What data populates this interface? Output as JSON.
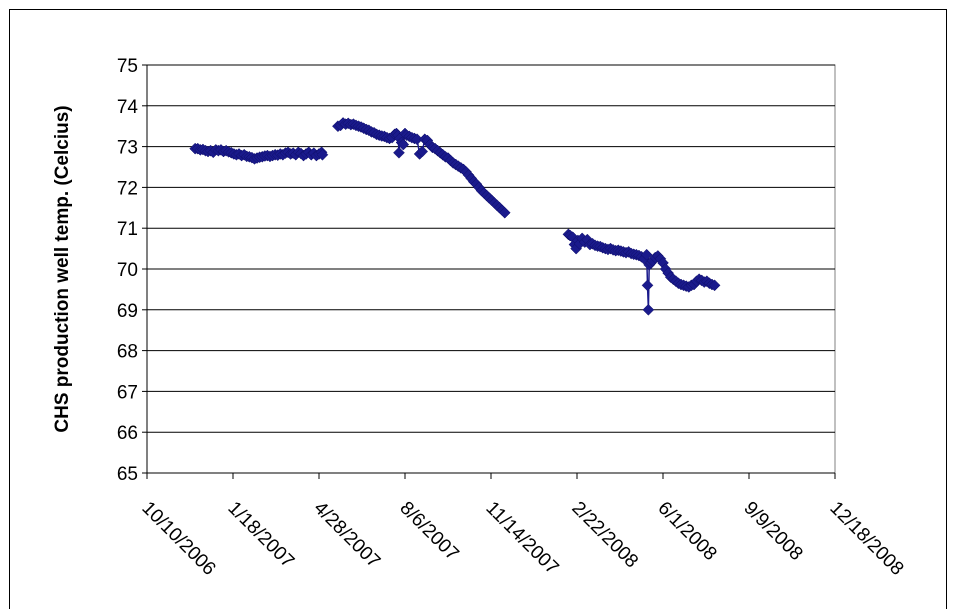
{
  "chart_data": {
    "type": "scatter",
    "title": "",
    "xlabel": "",
    "ylabel": "CHS production well temp. (Celcius)",
    "ylim": [
      65,
      75
    ],
    "y_ticks": [
      "65",
      "66",
      "67",
      "68",
      "69",
      "70",
      "71",
      "72",
      "73",
      "74",
      "75"
    ],
    "xlim": [
      "2006-10-10",
      "2008-12-18"
    ],
    "x_ticks": [
      "10/10/2006",
      "1/18/2007",
      "4/28/2007",
      "8/6/2007",
      "11/14/2007",
      "2/22/2008",
      "6/1/2008",
      "9/9/2008",
      "12/18/2008"
    ],
    "grid": true,
    "legend": "none",
    "marker": "diamond",
    "marker_color": "#1a1a8c",
    "points": [
      [
        "2006-12-05",
        72.95
      ],
      [
        "2006-12-08",
        72.95
      ],
      [
        "2006-12-11",
        72.92
      ],
      [
        "2006-12-14",
        72.93
      ],
      [
        "2006-12-17",
        72.9
      ],
      [
        "2006-12-20",
        72.88
      ],
      [
        "2006-12-23",
        72.9
      ],
      [
        "2006-12-26",
        72.86
      ],
      [
        "2006-12-29",
        72.92
      ],
      [
        "2007-01-01",
        72.9
      ],
      [
        "2007-01-04",
        72.92
      ],
      [
        "2007-01-07",
        72.88
      ],
      [
        "2007-01-10",
        72.9
      ],
      [
        "2007-01-13",
        72.87
      ],
      [
        "2007-01-16",
        72.85
      ],
      [
        "2007-01-19",
        72.82
      ],
      [
        "2007-01-22",
        72.8
      ],
      [
        "2007-01-25",
        72.82
      ],
      [
        "2007-01-28",
        72.78
      ],
      [
        "2007-01-31",
        72.8
      ],
      [
        "2007-02-03",
        72.76
      ],
      [
        "2007-02-06",
        72.75
      ],
      [
        "2007-02-09",
        72.73
      ],
      [
        "2007-02-12",
        72.7
      ],
      [
        "2007-02-15",
        72.72
      ],
      [
        "2007-02-18",
        72.74
      ],
      [
        "2007-02-21",
        72.75
      ],
      [
        "2007-02-24",
        72.77
      ],
      [
        "2007-02-27",
        72.78
      ],
      [
        "2007-03-02",
        72.76
      ],
      [
        "2007-03-05",
        72.78
      ],
      [
        "2007-03-08",
        72.8
      ],
      [
        "2007-03-11",
        72.79
      ],
      [
        "2007-03-14",
        72.82
      ],
      [
        "2007-03-17",
        72.8
      ],
      [
        "2007-03-20",
        72.84
      ],
      [
        "2007-03-23",
        72.86
      ],
      [
        "2007-03-26",
        72.82
      ],
      [
        "2007-03-29",
        72.84
      ],
      [
        "2007-04-01",
        72.8
      ],
      [
        "2007-04-04",
        72.86
      ],
      [
        "2007-04-07",
        72.83
      ],
      [
        "2007-04-10",
        72.78
      ],
      [
        "2007-04-13",
        72.82
      ],
      [
        "2007-04-16",
        72.86
      ],
      [
        "2007-04-19",
        72.8
      ],
      [
        "2007-04-22",
        72.84
      ],
      [
        "2007-04-25",
        72.78
      ],
      [
        "2007-04-28",
        72.82
      ],
      [
        "2007-05-01",
        72.86
      ],
      [
        "2007-05-02",
        72.8
      ],
      [
        "2007-05-20",
        73.5
      ],
      [
        "2007-05-23",
        73.52
      ],
      [
        "2007-05-26",
        73.58
      ],
      [
        "2007-05-29",
        73.55
      ],
      [
        "2007-06-01",
        73.57
      ],
      [
        "2007-06-04",
        73.54
      ],
      [
        "2007-06-07",
        73.55
      ],
      [
        "2007-06-10",
        73.52
      ],
      [
        "2007-06-13",
        73.5
      ],
      [
        "2007-06-16",
        73.48
      ],
      [
        "2007-06-19",
        73.45
      ],
      [
        "2007-06-22",
        73.42
      ],
      [
        "2007-06-25",
        73.4
      ],
      [
        "2007-06-28",
        73.36
      ],
      [
        "2007-07-01",
        73.34
      ],
      [
        "2007-07-04",
        73.3
      ],
      [
        "2007-07-07",
        73.28
      ],
      [
        "2007-07-10",
        73.26
      ],
      [
        "2007-07-13",
        73.25
      ],
      [
        "2007-07-16",
        73.22
      ],
      [
        "2007-07-19",
        73.2
      ],
      [
        "2007-07-22",
        73.22
      ],
      [
        "2007-07-25",
        73.3
      ],
      [
        "2007-07-27",
        73.32
      ],
      [
        "2007-07-29",
        73.28
      ],
      [
        "2007-07-30",
        72.85
      ],
      [
        "2007-07-31",
        73.2
      ],
      [
        "2007-08-02",
        73.1
      ],
      [
        "2007-08-04",
        73.05
      ],
      [
        "2007-08-06",
        73.32
      ],
      [
        "2007-08-08",
        73.28
      ],
      [
        "2007-08-11",
        73.25
      ],
      [
        "2007-08-14",
        73.22
      ],
      [
        "2007-08-17",
        73.2
      ],
      [
        "2007-08-20",
        73.18
      ],
      [
        "2007-08-23",
        72.82
      ],
      [
        "2007-08-26",
        72.88
      ],
      [
        "2007-08-29",
        73.18
      ],
      [
        "2007-09-01",
        73.15
      ],
      [
        "2007-09-04",
        73.05
      ],
      [
        "2007-09-07",
        72.98
      ],
      [
        "2007-09-10",
        72.95
      ],
      [
        "2007-09-13",
        72.9
      ],
      [
        "2007-09-16",
        72.85
      ],
      [
        "2007-09-19",
        72.8
      ],
      [
        "2007-09-22",
        72.75
      ],
      [
        "2007-09-25",
        72.72
      ],
      [
        "2007-09-28",
        72.66
      ],
      [
        "2007-10-01",
        72.6
      ],
      [
        "2007-10-04",
        72.56
      ],
      [
        "2007-10-07",
        72.52
      ],
      [
        "2007-10-10",
        72.48
      ],
      [
        "2007-10-13",
        72.44
      ],
      [
        "2007-10-16",
        72.38
      ],
      [
        "2007-10-19",
        72.3
      ],
      [
        "2007-10-22",
        72.22
      ],
      [
        "2007-10-25",
        72.14
      ],
      [
        "2007-10-28",
        72.08
      ],
      [
        "2007-10-31",
        72.0
      ],
      [
        "2007-11-03",
        71.92
      ],
      [
        "2007-11-06",
        71.86
      ],
      [
        "2007-11-09",
        71.8
      ],
      [
        "2007-11-12",
        71.74
      ],
      [
        "2007-11-15",
        71.68
      ],
      [
        "2007-11-18",
        71.62
      ],
      [
        "2007-11-21",
        71.56
      ],
      [
        "2007-11-24",
        71.5
      ],
      [
        "2007-11-27",
        71.44
      ],
      [
        "2007-11-30",
        71.38
      ],
      [
        "2008-02-12",
        70.85
      ],
      [
        "2008-02-14",
        70.82
      ],
      [
        "2008-02-17",
        70.78
      ],
      [
        "2008-02-19",
        70.6
      ],
      [
        "2008-02-21",
        70.5
      ],
      [
        "2008-02-23",
        70.7
      ],
      [
        "2008-02-25",
        70.62
      ],
      [
        "2008-02-28",
        70.75
      ],
      [
        "2008-03-02",
        70.66
      ],
      [
        "2008-03-05",
        70.72
      ],
      [
        "2008-03-08",
        70.6
      ],
      [
        "2008-03-11",
        70.62
      ],
      [
        "2008-03-14",
        70.58
      ],
      [
        "2008-03-17",
        70.56
      ],
      [
        "2008-03-20",
        70.55
      ],
      [
        "2008-03-23",
        70.52
      ],
      [
        "2008-03-26",
        70.5
      ],
      [
        "2008-03-29",
        70.48
      ],
      [
        "2008-04-01",
        70.5
      ],
      [
        "2008-04-04",
        70.47
      ],
      [
        "2008-04-07",
        70.45
      ],
      [
        "2008-04-10",
        70.46
      ],
      [
        "2008-04-13",
        70.44
      ],
      [
        "2008-04-16",
        70.42
      ],
      [
        "2008-04-19",
        70.4
      ],
      [
        "2008-04-22",
        70.42
      ],
      [
        "2008-04-25",
        70.38
      ],
      [
        "2008-04-28",
        70.36
      ],
      [
        "2008-05-01",
        70.35
      ],
      [
        "2008-05-04",
        70.33
      ],
      [
        "2008-05-07",
        70.3
      ],
      [
        "2008-05-10",
        70.25
      ],
      [
        "2008-05-13",
        70.35
      ],
      [
        "2008-05-14",
        69.6
      ],
      [
        "2008-05-15",
        69.0
      ],
      [
        "2008-05-16",
        70.1
      ],
      [
        "2008-05-18",
        70.15
      ],
      [
        "2008-05-20",
        70.2
      ],
      [
        "2008-05-23",
        70.28
      ],
      [
        "2008-05-26",
        70.32
      ],
      [
        "2008-05-29",
        70.25
      ],
      [
        "2008-06-01",
        70.15
      ],
      [
        "2008-06-04",
        70.0
      ],
      [
        "2008-06-07",
        69.9
      ],
      [
        "2008-06-10",
        69.8
      ],
      [
        "2008-06-13",
        69.75
      ],
      [
        "2008-06-16",
        69.7
      ],
      [
        "2008-06-19",
        69.65
      ],
      [
        "2008-06-22",
        69.62
      ],
      [
        "2008-06-25",
        69.6
      ],
      [
        "2008-06-28",
        69.58
      ],
      [
        "2008-07-01",
        69.56
      ],
      [
        "2008-07-04",
        69.6
      ],
      [
        "2008-07-07",
        69.62
      ],
      [
        "2008-07-10",
        69.7
      ],
      [
        "2008-07-13",
        69.75
      ],
      [
        "2008-07-16",
        69.72
      ],
      [
        "2008-07-19",
        69.68
      ],
      [
        "2008-07-22",
        69.7
      ],
      [
        "2008-07-25",
        69.65
      ],
      [
        "2008-07-28",
        69.62
      ],
      [
        "2008-07-31",
        69.6
      ]
    ]
  }
}
